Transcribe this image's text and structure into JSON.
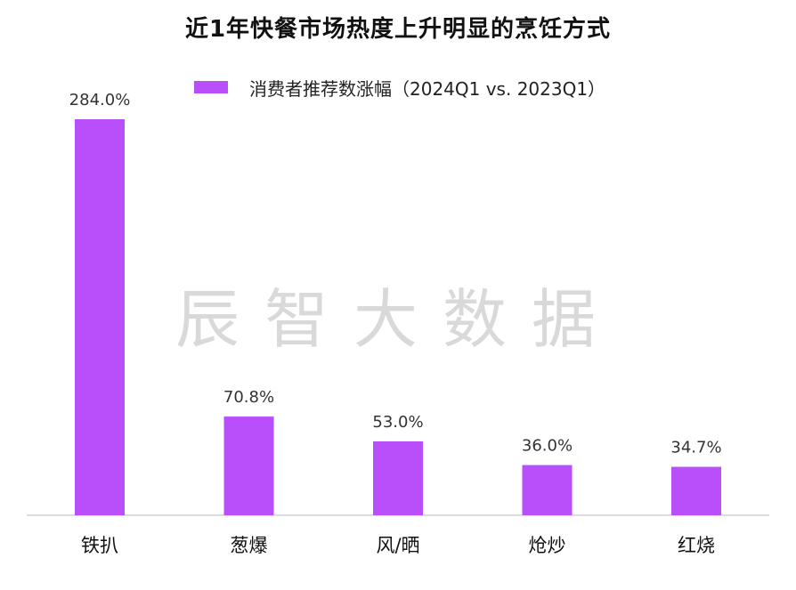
{
  "chart_data": {
    "type": "bar",
    "title": "近1年快餐市场热度上升明显的烹饪方式",
    "categories": [
      "铁扒",
      "葱爆",
      "风/晒",
      "炝炒",
      "红烧"
    ],
    "series": [
      {
        "name": "消费者推荐数涨幅（2024Q1 vs. 2023Q1）",
        "values": [
          284.0,
          70.8,
          53.0,
          36.0,
          34.7
        ],
        "value_labels": [
          "284.0%",
          "70.8%",
          "53.0%",
          "36.0%",
          "34.7%"
        ],
        "color": "#b94ffb"
      }
    ],
    "ylim": [
      0,
      300
    ],
    "grid": false,
    "legend_position": "top-center"
  },
  "watermark": "辰智大数据",
  "colors": {
    "bar": "#b94ffb",
    "axis": "#d0d0d0",
    "watermark": "#d9d9d9"
  }
}
